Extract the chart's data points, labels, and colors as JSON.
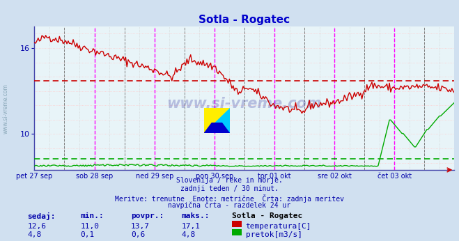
{
  "title": "Sotla - Rogatec",
  "title_color": "#0000cc",
  "bg_color": "#d0e0f0",
  "plot_bg_color": "#e8f4f8",
  "grid_color_h": "#ffaaaa",
  "grid_color_v": "#cccccc",
  "xlabel_color": "#0000aa",
  "text_color": "#0000aa",
  "temp_color": "#cc0000",
  "flow_color": "#00aa00",
  "avg_temp_color": "#cc0000",
  "avg_flow_color": "#00aa00",
  "vline_color": "#ff00ff",
  "vline2_color": "#808080",
  "watermark_color": "#000088",
  "temp_avg": 13.7,
  "flow_avg": 0.6,
  "ylim_min": 7.5,
  "ylim_max": 17.5,
  "yticks": [
    10,
    16
  ],
  "n_points": 337,
  "subtitle_lines": [
    "Slovenija / reke in morje.",
    "zadnji teden / 30 minut.",
    "Meritve: trenutne  Enote: metrične  Črta: zadnja meritev",
    "navpična črta - razdelek 24 ur"
  ],
  "stat_headers": [
    "sedaj:",
    "min.:",
    "povpr.:",
    "maks.:"
  ],
  "stat_values_temp": [
    "12,6",
    "11,0",
    "13,7",
    "17,1"
  ],
  "stat_values_flow": [
    "4,8",
    "0,1",
    "0,6",
    "4,8"
  ],
  "legend_name": "Sotla - Rogatec",
  "legend_temp": "temperatura[C]",
  "legend_flow": "pretok[m3/s]",
  "day_labels": [
    "pet 27 sep",
    "sob 28 sep",
    "ned 29 sep",
    "pon 30 sep",
    "tor 01 okt",
    "sre 02 okt",
    "čet 03 okt"
  ],
  "day_positions": [
    0,
    48,
    96,
    144,
    192,
    240,
    288
  ],
  "vline_positions": [
    48,
    96,
    144,
    192,
    240,
    288
  ],
  "vline2_positions": [
    24,
    72,
    120,
    168,
    216,
    264,
    312
  ]
}
